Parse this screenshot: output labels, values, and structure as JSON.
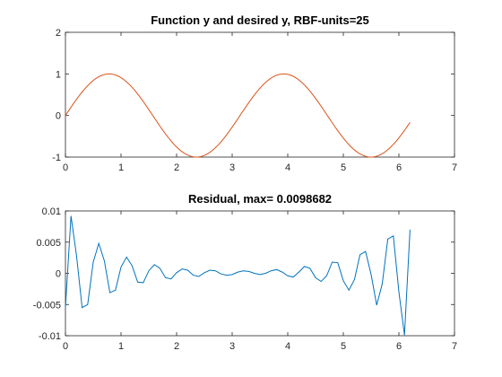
{
  "chart_data": [
    {
      "type": "line",
      "title": "Function y and desired y, RBF-units=25",
      "xlabel": "",
      "ylabel": "",
      "xlim": [
        0,
        7
      ],
      "ylim": [
        -1,
        2
      ],
      "x_ticks": [
        "0",
        "1",
        "2",
        "3",
        "4",
        "5",
        "6",
        "7"
      ],
      "y_ticks": [
        "-1",
        "0",
        "1",
        "2"
      ],
      "grid": false,
      "series": [
        {
          "color": "#D95319",
          "function": "sin(2x)",
          "x_range": [
            0,
            6.2
          ],
          "note": "desired and approximated curves overlap"
        }
      ]
    },
    {
      "type": "line",
      "title": "Residual, max= 0.0098682",
      "xlabel": "",
      "ylabel": "",
      "xlim": [
        0,
        7
      ],
      "ylim": [
        -0.01,
        0.01
      ],
      "x_ticks": [
        "0",
        "1",
        "2",
        "3",
        "4",
        "5",
        "6",
        "7"
      ],
      "y_ticks": [
        "-0.01",
        "-0.005",
        "0",
        "0.005",
        "0.01"
      ],
      "grid": false,
      "series": [
        {
          "color": "#0072BD",
          "x": [
            0,
            0.1,
            0.2,
            0.3,
            0.4,
            0.5,
            0.6,
            0.7,
            0.8,
            0.9,
            1.0,
            1.1,
            1.2,
            1.3,
            1.4,
            1.5,
            1.6,
            1.7,
            1.8,
            1.9,
            2.0,
            2.1,
            2.2,
            2.3,
            2.4,
            2.5,
            2.6,
            2.7,
            2.8,
            2.9,
            3.0,
            3.1,
            3.2,
            3.3,
            3.4,
            3.5,
            3.6,
            3.7,
            3.8,
            3.9,
            4.0,
            4.1,
            4.2,
            4.3,
            4.4,
            4.5,
            4.6,
            4.7,
            4.8,
            4.9,
            5.0,
            5.1,
            5.2,
            5.3,
            5.4,
            5.5,
            5.6,
            5.7,
            5.8,
            5.9,
            6.0,
            6.1,
            6.2
          ],
          "values": [
            -0.0055,
            0.0092,
            0.0028,
            -0.0055,
            -0.005,
            0.0018,
            0.0048,
            0.002,
            -0.0031,
            -0.0027,
            0.001,
            0.0026,
            0.0012,
            -0.0014,
            -0.0015,
            0.0004,
            0.0014,
            0.0008,
            -0.0007,
            -0.0009,
            0.0001,
            0.0007,
            0.0005,
            -0.0003,
            -0.0005,
            0.0001,
            0.0005,
            0.0004,
            -0.0001,
            -0.0003,
            -0.0002,
            0.0002,
            0.0004,
            0.0003,
            0.0,
            -0.0002,
            0.0,
            0.0004,
            0.0006,
            0.0002,
            -0.0004,
            -0.0006,
            0.0002,
            0.0011,
            0.0008,
            -0.0007,
            -0.0013,
            -0.0004,
            0.0018,
            0.0017,
            -0.0012,
            -0.0027,
            -0.001,
            0.003,
            0.0035,
            -0.0002,
            -0.0051,
            -0.0017,
            0.0055,
            0.006,
            -0.003,
            -0.0099,
            0.007
          ]
        }
      ]
    }
  ]
}
